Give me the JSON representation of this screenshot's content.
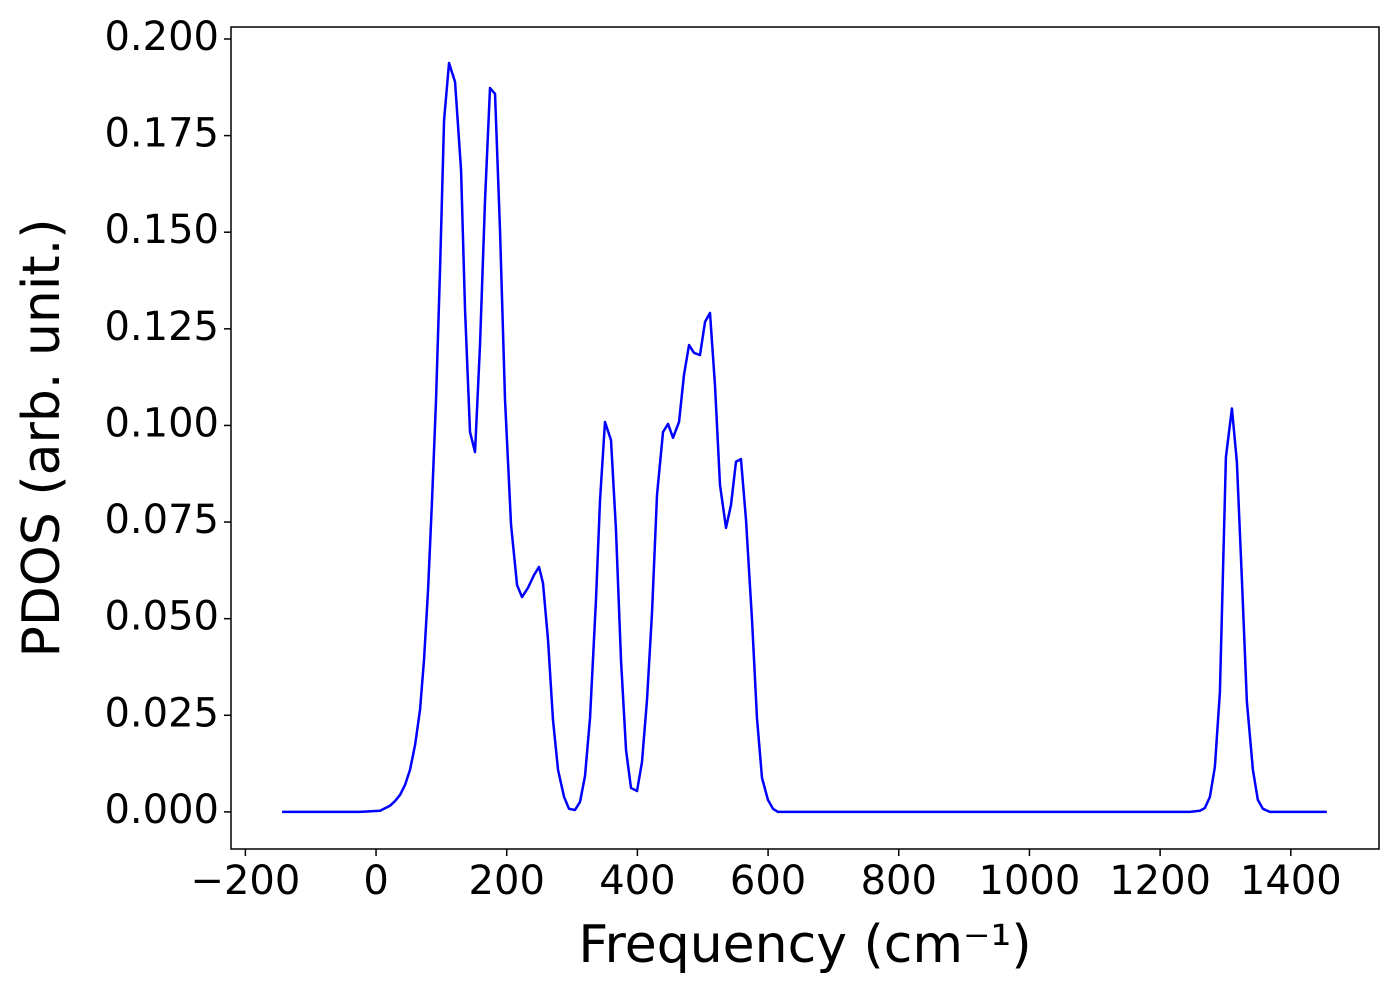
{
  "chart_data": {
    "type": "line",
    "xlabel": "Frequency (cm⁻¹)",
    "ylabel": "PDOS (arb. unit.)",
    "xlim": [
      -222,
      1535
    ],
    "ylim": [
      -0.0096,
      0.2031
    ],
    "xticks": [
      {
        "value": -200,
        "label": "−200"
      },
      0,
      200,
      400,
      600,
      800,
      1000,
      1200,
      1400
    ],
    "yticks": [
      {
        "value": 0,
        "label": "0.000"
      },
      {
        "value": 0.025,
        "label": "0.025"
      },
      {
        "value": 0.05,
        "label": "0.050"
      },
      {
        "value": 0.075,
        "label": "0.075"
      },
      {
        "value": 0.1,
        "label": "0.100"
      },
      {
        "value": 0.125,
        "label": "0.125"
      },
      {
        "value": 0.15,
        "label": "0.150"
      },
      {
        "value": 0.175,
        "label": "0.175"
      },
      {
        "value": 0.2,
        "label": "0.200"
      }
    ],
    "grid": false,
    "series": [
      {
        "color": "#0000ff",
        "x": [
          -143.8,
          -24.5,
          6.1,
          21.4,
          29.1,
          36.7,
          44.4,
          52.0,
          59.7,
          67.3,
          73.4,
          79.6,
          85.7,
          91.8,
          97.9,
          104.1,
          111.7,
          120.9,
          130.1,
          136.2,
          143.8,
          151.5,
          159.1,
          166.8,
          174.4,
          182.1,
          189.7,
          197.4,
          206.6,
          215.8,
          223.4,
          232.6,
          241.8,
          249.4,
          255.5,
          263.2,
          270.8,
          278.5,
          287.7,
          295.3,
          304.5,
          312.2,
          319.8,
          327.5,
          336.6,
          342.8,
          350.4,
          359.6,
          367.2,
          374.9,
          382.6,
          390.2,
          399.4,
          407.0,
          414.7,
          422.4,
          430.0,
          439.2,
          446.9,
          454.5,
          463.7,
          471.3,
          479.0,
          486.6,
          495.8,
          503.5,
          511.1,
          518.7,
          526.4,
          535.6,
          543.2,
          550.9,
          558.5,
          566.2,
          575.4,
          583.0,
          590.7,
          599.8,
          607.5,
          615.1,
          1245.6,
          1260.9,
          1268.5,
          1276.2,
          1283.8,
          1291.5,
          1300.7,
          1309.9,
          1317.5,
          1325.2,
          1332.8,
          1342.0,
          1349.6,
          1357.3,
          1368.0,
          1455.2
        ],
        "values": [
          0,
          0,
          0.0003,
          0.0016,
          0.0028,
          0.0044,
          0.007,
          0.0109,
          0.0173,
          0.0264,
          0.0393,
          0.0574,
          0.0807,
          0.1066,
          0.1402,
          0.179,
          0.1938,
          0.1889,
          0.1661,
          0.1299,
          0.0983,
          0.0931,
          0.1208,
          0.1583,
          0.1873,
          0.1858,
          0.1506,
          0.1066,
          0.0743,
          0.0587,
          0.0556,
          0.058,
          0.0613,
          0.0634,
          0.0592,
          0.0445,
          0.0238,
          0.0109,
          0.0039,
          0.0008,
          0.0005,
          0.0026,
          0.0093,
          0.0243,
          0.0549,
          0.0807,
          0.1009,
          0.0962,
          0.073,
          0.0393,
          0.016,
          0.0062,
          0.0054,
          0.0129,
          0.029,
          0.0517,
          0.082,
          0.0983,
          0.1004,
          0.0968,
          0.1009,
          0.1131,
          0.1208,
          0.1188,
          0.1182,
          0.1268,
          0.1291,
          0.1105,
          0.0846,
          0.0735,
          0.0794,
          0.0906,
          0.0913,
          0.0756,
          0.0497,
          0.0243,
          0.0088,
          0.0031,
          0.0008,
          0,
          0,
          0.0003,
          0.001,
          0.0039,
          0.0116,
          0.031,
          0.0918,
          0.1044,
          0.0905,
          0.06,
          0.0285,
          0.0109,
          0.0031,
          0.0008,
          0,
          0
        ]
      }
    ]
  }
}
